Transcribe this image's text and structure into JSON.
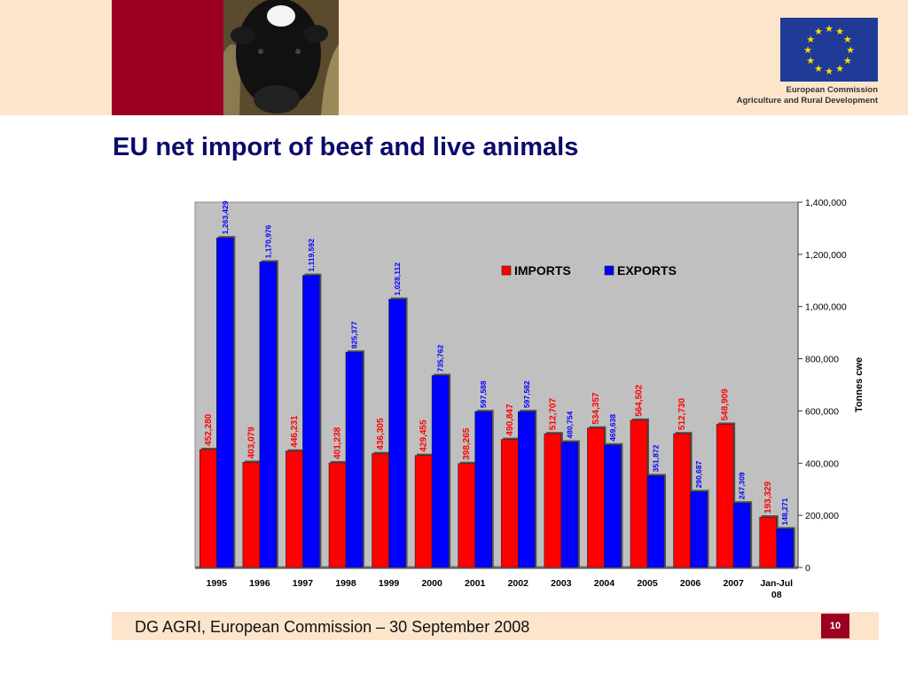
{
  "slide": {
    "title": "EU net import of beef and live animals",
    "footer": "DG AGRI, European Commission – 30 September 2008",
    "page_number": "10",
    "org_line1": "European Commission",
    "org_line2": "Agriculture and Rural Development",
    "logo_icon": "eu-flag-icon",
    "photo_icon": "calf-photo",
    "colors": {
      "accent_red": "#9b0023",
      "header_band": "#fde5cc",
      "title": "#0b0b6b",
      "plot_bg": "#c0c0c0",
      "imports": "#ff0000",
      "exports": "#0000ff"
    }
  },
  "chart_data": {
    "type": "bar",
    "title": "",
    "xlabel": "",
    "ylabel": "Tonnes cwe",
    "categories": [
      "1995",
      "1996",
      "1997",
      "1998",
      "1999",
      "2000",
      "2001",
      "2002",
      "2003",
      "2004",
      "2005",
      "2006",
      "2007",
      "Jan-Jul 08"
    ],
    "series": [
      {
        "name": "IMPORTS",
        "values": [
          452280,
          403079,
          446231,
          401238,
          436305,
          429455,
          398265,
          490847,
          512707,
          534357,
          564502,
          512730,
          548909,
          193329
        ],
        "labels": [
          "452,280",
          "403,079",
          "446,231",
          "401,238",
          "436,305",
          "429,455",
          "398,265",
          "490,847",
          "512,707",
          "534,357",
          "564,502",
          "512,730",
          "548,909",
          "193,329"
        ]
      },
      {
        "name": "EXPORTS",
        "values": [
          1263429,
          1170976,
          1119592,
          825377,
          1028112,
          735762,
          597588,
          597582,
          480754,
          469638,
          351872,
          290687,
          247309,
          148271
        ],
        "labels": [
          "1,263,429",
          "1,170,976",
          "1,119,592",
          "825,377",
          "1,028,112",
          "735,762",
          "597,588",
          "597,582",
          "480,754",
          "469,638",
          "351,872",
          "290,687",
          "247,309",
          "148,271"
        ]
      }
    ],
    "ylim": [
      0,
      1400000
    ],
    "yticks": [
      0,
      200000,
      400000,
      600000,
      800000,
      1000000,
      1200000,
      1400000
    ],
    "ytick_labels": [
      "0",
      "200,000",
      "400,000",
      "600,000",
      "800,000",
      "1,000,000",
      "1,200,000",
      "1,400,000"
    ],
    "y_axis_side": "right",
    "grid": false,
    "legend_position": "top-right"
  }
}
